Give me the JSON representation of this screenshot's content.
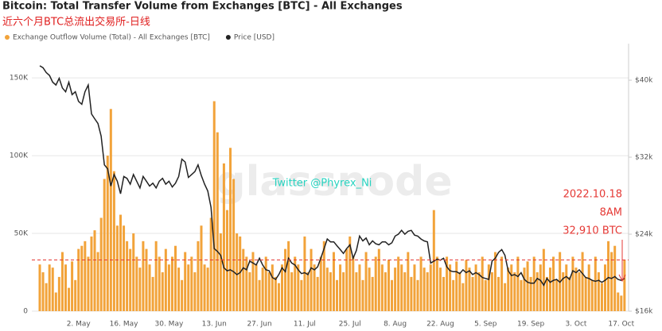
{
  "chart_data": {
    "type": "bar",
    "title": "Bitcoin: Total Transfer Volume from Exchanges [BTC] - All Exchanges",
    "subtitle": "近六个月BTC总流出交易所-日线",
    "watermark": "glassnode",
    "credit": "Twitter @Phyrex_Ni",
    "annotation": [
      "2022.10.18",
      "8AM"
    ],
    "reference_line": {
      "value": 32910,
      "label": "32,910 BTC",
      "color": "#e53935"
    },
    "categories": [
      null,
      null,
      null,
      null,
      null,
      null,
      null,
      null,
      null,
      null,
      null,
      null,
      "2. May",
      null,
      null,
      null,
      null,
      null,
      null,
      null,
      null,
      null,
      null,
      null,
      null,
      null,
      "16. May",
      null,
      null,
      null,
      null,
      null,
      null,
      null,
      null,
      null,
      null,
      null,
      null,
      null,
      "30. May",
      null,
      null,
      null,
      null,
      null,
      null,
      null,
      null,
      null,
      null,
      null,
      null,
      null,
      "13. Jun",
      null,
      null,
      null,
      null,
      null,
      null,
      null,
      null,
      null,
      null,
      null,
      null,
      null,
      "27. Jun",
      null,
      null,
      null,
      null,
      null,
      null,
      null,
      null,
      null,
      null,
      null,
      null,
      null,
      "11. Jul",
      null,
      null,
      null,
      null,
      null,
      null,
      null,
      null,
      null,
      null,
      null,
      null,
      null,
      "25. Jul",
      null,
      null,
      null,
      null,
      null,
      null,
      null,
      null,
      null,
      null,
      null,
      null,
      null,
      "8. Aug",
      null,
      null,
      null,
      null,
      null,
      null,
      null,
      null,
      null,
      null,
      null,
      null,
      null,
      "22. Aug",
      null,
      null,
      null,
      null,
      null,
      null,
      null,
      null,
      null,
      null,
      null,
      null,
      null,
      "5. Sep",
      null,
      null,
      null,
      null,
      null,
      null,
      null,
      null,
      null,
      null,
      null,
      null,
      null,
      "19. Sep",
      null,
      null,
      null,
      null,
      null,
      null,
      null,
      null,
      null,
      null,
      null,
      null,
      null,
      "3. Oct",
      null,
      null,
      null,
      null,
      null,
      null,
      null,
      null,
      null,
      null,
      null,
      null,
      null,
      "17. Oct",
      null
    ],
    "series": [
      {
        "name": "Exchange Outflow Volume (Total) - All Exchanges [BTC]",
        "type": "bar",
        "color": "#f2a33a",
        "values": [
          30000,
          25000,
          18000,
          30000,
          28000,
          12000,
          22000,
          38000,
          30000,
          15000,
          32000,
          20000,
          40000,
          42000,
          45000,
          35000,
          48000,
          52000,
          38000,
          60000,
          85000,
          100000,
          130000,
          90000,
          55000,
          62000,
          55000,
          45000,
          40000,
          50000,
          35000,
          28000,
          45000,
          40000,
          30000,
          22000,
          45000,
          35000,
          25000,
          40000,
          30000,
          35000,
          42000,
          28000,
          20000,
          38000,
          30000,
          35000,
          25000,
          45000,
          55000,
          30000,
          28000,
          60000,
          135000,
          115000,
          50000,
          95000,
          65000,
          105000,
          85000,
          50000,
          48000,
          40000,
          35000,
          25000,
          38000,
          30000,
          20000,
          28000,
          35000,
          25000,
          30000,
          22000,
          18000,
          30000,
          40000,
          45000,
          25000,
          35000,
          30000,
          20000,
          48000,
          25000,
          40000,
          30000,
          22000,
          35000,
          45000,
          28000,
          25000,
          38000,
          20000,
          30000,
          25000,
          40000,
          48000,
          35000,
          25000,
          30000,
          20000,
          38000,
          28000,
          22000,
          35000,
          40000,
          30000,
          25000,
          33000,
          20000,
          28000,
          35000,
          30000,
          25000,
          38000,
          22000,
          30000,
          20000,
          35000,
          28000,
          25000,
          30000,
          65000,
          35000,
          28000,
          22000,
          35000,
          30000,
          20000,
          32000,
          25000,
          18000,
          33000,
          28000,
          22000,
          30000,
          25000,
          35000,
          20000,
          30000,
          25000,
          38000,
          22000,
          35000,
          18000,
          28000,
          30000,
          25000,
          35000,
          20000,
          28000,
          32000,
          22000,
          35000,
          25000,
          30000,
          40000,
          22000,
          28000,
          35000,
          20000,
          38000,
          25000,
          30000,
          22000,
          35000,
          28000,
          25000,
          38000,
          22000,
          30000,
          20000,
          35000,
          25000,
          18000,
          30000,
          45000,
          38000,
          42000,
          12000,
          10000,
          33000
        ]
      },
      {
        "name": "Price [USD]",
        "type": "line",
        "axis": "y2",
        "color": "#222222",
        "values": [
          41500,
          41300,
          40800,
          40500,
          39800,
          39500,
          40200,
          39200,
          38800,
          39800,
          38500,
          38800,
          37800,
          37500,
          38800,
          39500,
          36500,
          36000,
          35500,
          34200,
          31200,
          30800,
          29000,
          30200,
          29500,
          28200,
          30000,
          29800,
          29200,
          30200,
          29500,
          28800,
          30000,
          29500,
          29000,
          29300,
          28800,
          29500,
          29800,
          29200,
          29500,
          28900,
          29300,
          30000,
          31800,
          31500,
          29900,
          30200,
          30500,
          31200,
          30100,
          29200,
          28500,
          26800,
          22500,
          22200,
          21800,
          20500,
          20200,
          20300,
          20100,
          19800,
          20000,
          20500,
          20300,
          21200,
          21000,
          20800,
          21500,
          20800,
          20300,
          20200,
          19500,
          19300,
          19800,
          20500,
          20100,
          21500,
          21000,
          20800,
          20300,
          19900,
          20000,
          19800,
          20500,
          20300,
          20600,
          21500,
          22500,
          23500,
          23200,
          23200,
          22800,
          22400,
          22000,
          22500,
          22900,
          21500,
          22300,
          23800,
          23300,
          23600,
          22900,
          23300,
          23000,
          22900,
          23200,
          23200,
          22900,
          23100,
          23800,
          24000,
          24400,
          24000,
          24300,
          24400,
          23900,
          23800,
          23500,
          23300,
          23200,
          21000,
          21200,
          21400,
          21300,
          21500,
          20600,
          20200,
          20100,
          20100,
          19900,
          20300,
          20000,
          20200,
          19800,
          20000,
          19800,
          19500,
          19400,
          19300,
          21200,
          21500,
          22100,
          22400,
          21800,
          20200,
          19700,
          19800,
          19600,
          20000,
          19300,
          19000,
          18900,
          18900,
          19400,
          19200,
          18700,
          19400,
          19000,
          19200,
          19300,
          19000,
          19400,
          19600,
          19300,
          20200,
          20000,
          20300,
          19900,
          19500,
          19400,
          19200,
          19100,
          19200,
          19000,
          19200,
          19500,
          19400,
          19600,
          19300,
          19200,
          19400
        ]
      }
    ],
    "ylim": [
      0,
      172000
    ],
    "yticks": [
      0,
      {
        "value": 50000,
        "label": "50K"
      },
      {
        "value": 100000,
        "label": "100K"
      },
      {
        "value": 150000,
        "label": "150K"
      }
    ],
    "y2lim": [
      16000,
      43800
    ],
    "y2ticks": [
      {
        "value": 16000,
        "label": "$16k"
      },
      {
        "value": 24000,
        "label": "$24k"
      },
      {
        "value": 32000,
        "label": "$32k"
      },
      {
        "value": 40000,
        "label": "$40k"
      }
    ],
    "grid": true
  }
}
